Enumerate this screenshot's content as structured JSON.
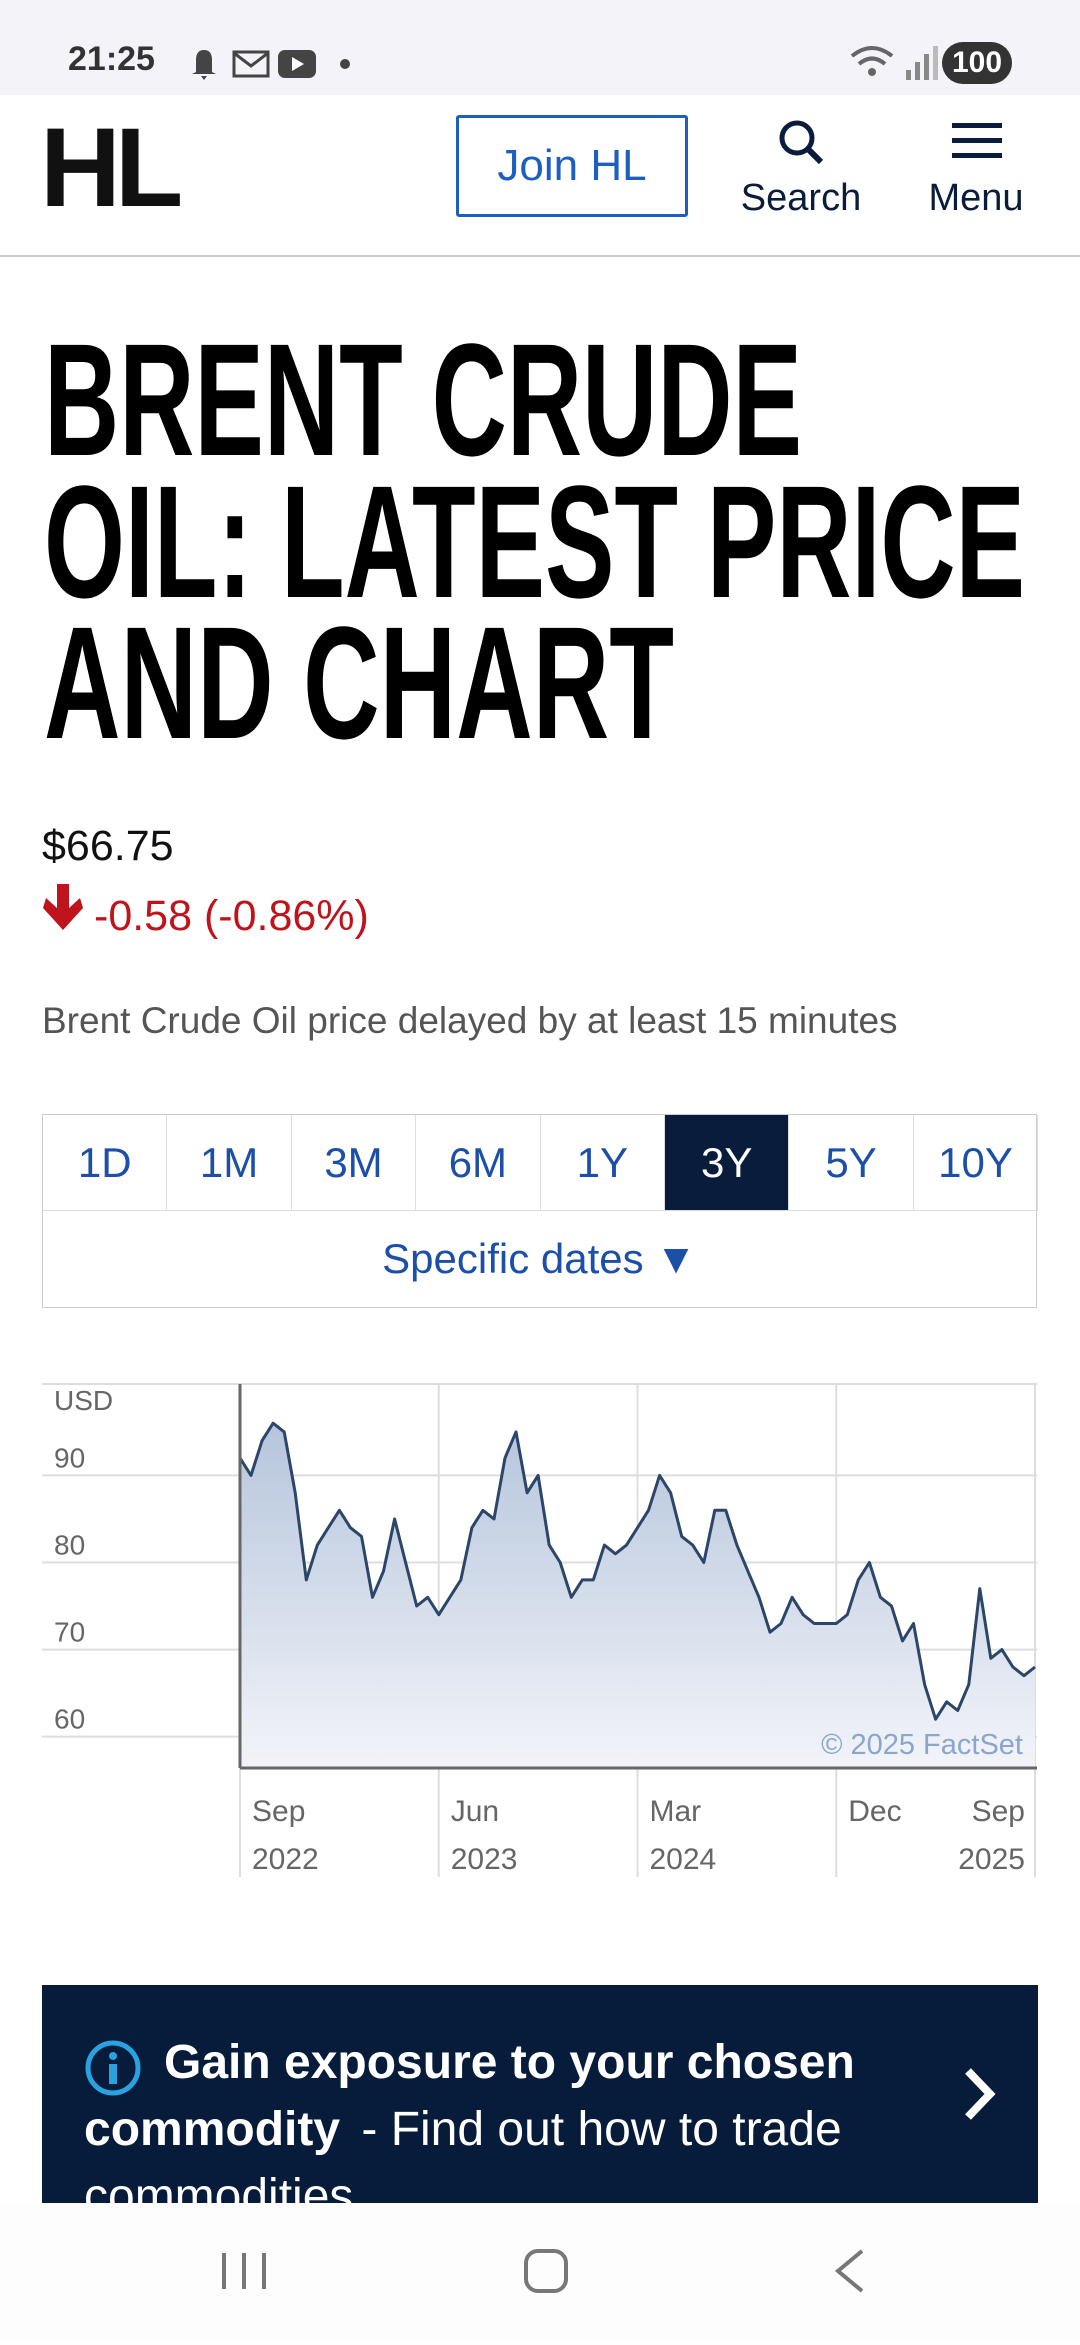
{
  "status_bar": {
    "time": "21:25",
    "battery": "100"
  },
  "header": {
    "logo": "HL",
    "join": "Join HL",
    "search": "Search",
    "menu": "Menu"
  },
  "title": [
    "BRENT CRUDE",
    "OIL: LATEST PRICE",
    "AND CHART"
  ],
  "price": "$66.75",
  "change": "-0.58 (-0.86%)",
  "note": "Brent Crude Oil price delayed by at least 15 minutes",
  "tabs": [
    "1D",
    "1M",
    "3M",
    "6M",
    "1Y",
    "3Y",
    "5Y",
    "10Y"
  ],
  "selected_tab": 5,
  "specific_dates": "Specific dates ▼",
  "chart_data": {
    "type": "line",
    "unit_label": "USD",
    "color": "#2b4668",
    "values": [
      92,
      90,
      94,
      96,
      95,
      88,
      78,
      82,
      84,
      86,
      84,
      83,
      76,
      79,
      85,
      80,
      75,
      76,
      74,
      76,
      78,
      84,
      86,
      85,
      92,
      95,
      88,
      90,
      82,
      80,
      76,
      78,
      78,
      82,
      81,
      82,
      84,
      86,
      90,
      88,
      83,
      82,
      80,
      86,
      86,
      82,
      79,
      76,
      72,
      73,
      76,
      74,
      73,
      73,
      73,
      74,
      78,
      80,
      76,
      75,
      71,
      73,
      66,
      62,
      64,
      63,
      66,
      77,
      69,
      70,
      68,
      67,
      68
    ],
    "xlim": [
      0,
      72
    ],
    "xticks": [
      {
        "value": 0,
        "label": "Sep 2022"
      },
      {
        "value": 18,
        "label": "Jun 2023"
      },
      {
        "value": 36,
        "label": "Mar 2024"
      },
      {
        "value": 54,
        "label": "Dec"
      },
      {
        "value": 72,
        "label": "Sep 2025"
      }
    ],
    "ylim": [
      56.4,
      100.5
    ],
    "yticks": [
      60,
      70,
      80,
      90
    ],
    "grid": true,
    "credit": "© 2025 FactSet"
  },
  "banner": {
    "bold": "Gain exposure to your chosen commodity",
    "text": "- Find out how to trade commodities"
  }
}
